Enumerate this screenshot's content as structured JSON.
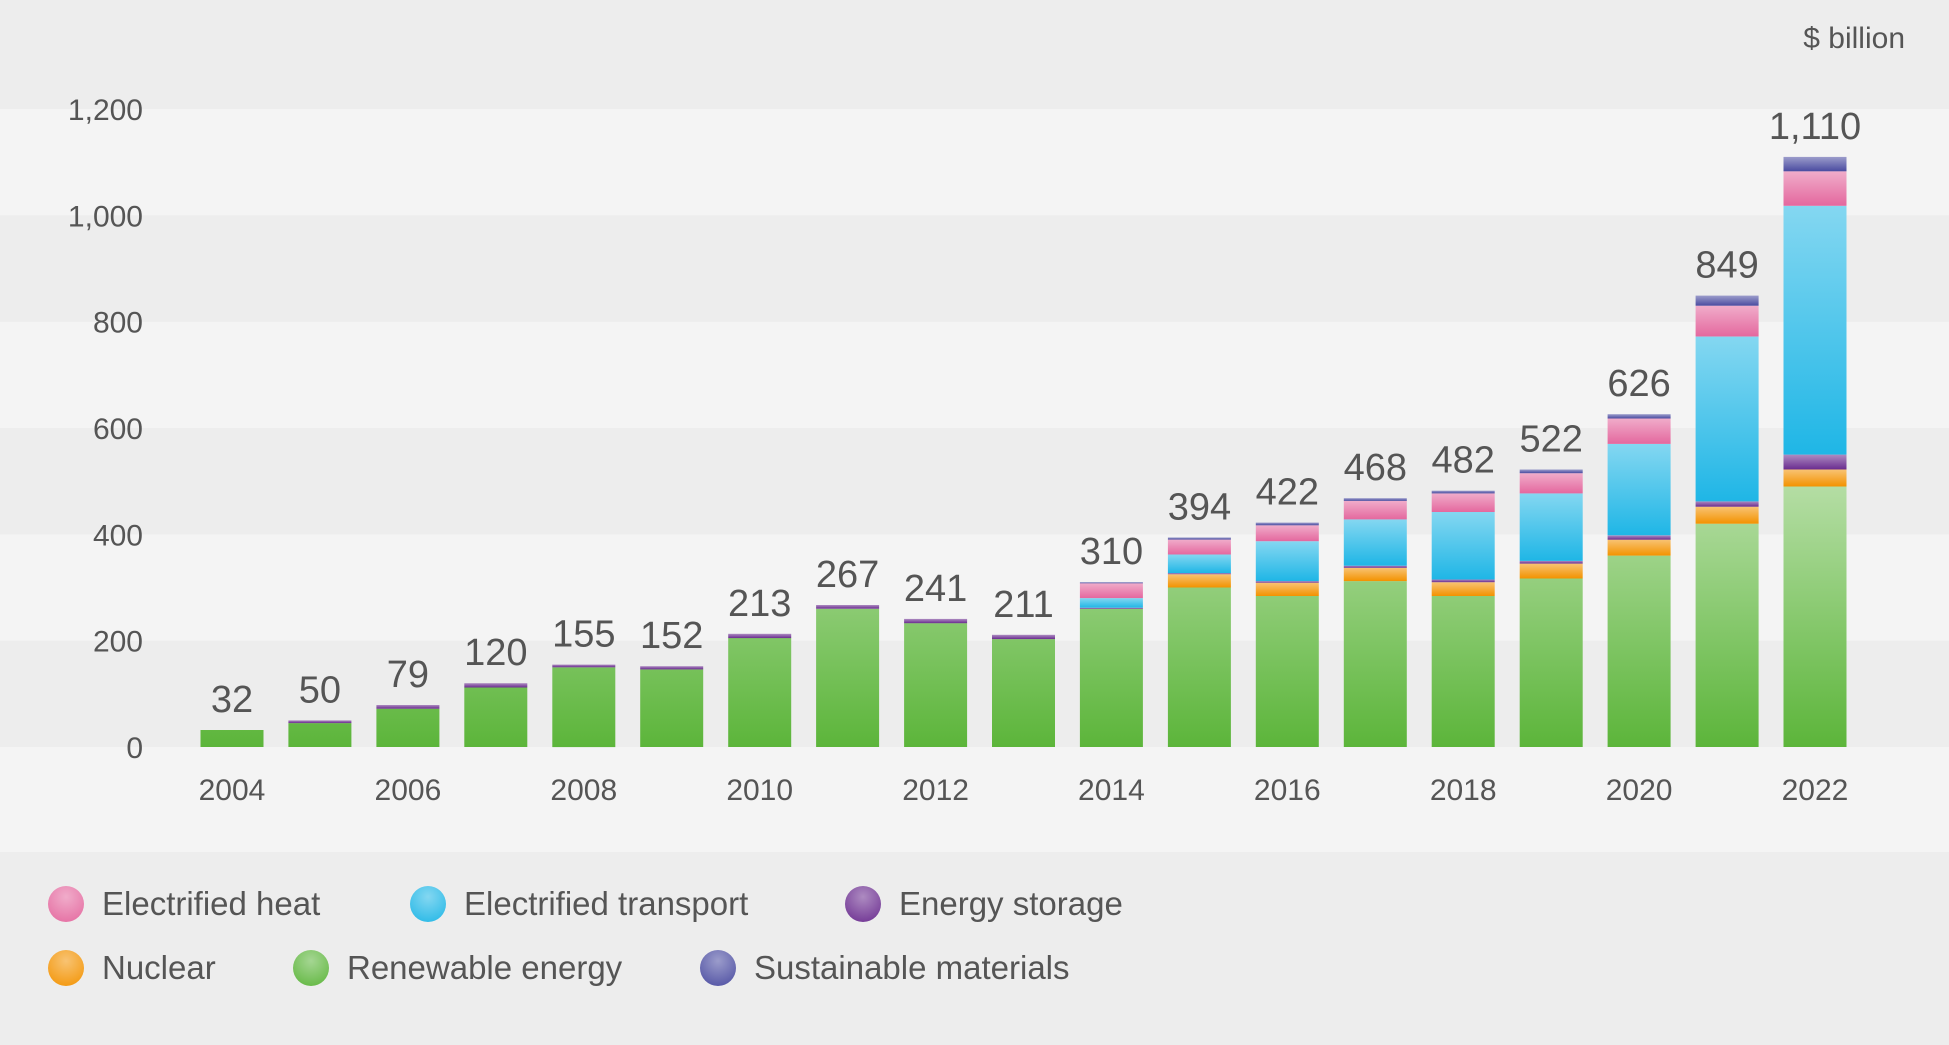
{
  "chart_data": {
    "type": "bar",
    "stacked": true,
    "unit_label": "$ billion",
    "categories": [
      "2004",
      "2005",
      "2006",
      "2007",
      "2008",
      "2009",
      "2010",
      "2011",
      "2012",
      "2013",
      "2014",
      "2015",
      "2016",
      "2017",
      "2018",
      "2019",
      "2020",
      "2021",
      "2022"
    ],
    "x_tick_labels": [
      "2004",
      "2006",
      "2008",
      "2010",
      "2012",
      "2014",
      "2016",
      "2018",
      "2020",
      "2022"
    ],
    "ylim": [
      0,
      1200
    ],
    "y_ticks": [
      0,
      200,
      400,
      600,
      800,
      1000,
      1200
    ],
    "y_tick_labels": [
      "0",
      "200",
      "400",
      "600",
      "800",
      "1,000",
      "1,200"
    ],
    "totals": [
      32,
      50,
      79,
      120,
      155,
      152,
      213,
      267,
      241,
      211,
      310,
      394,
      422,
      468,
      482,
      522,
      626,
      849,
      1110
    ],
    "total_labels": [
      "32",
      "50",
      "79",
      "120",
      "155",
      "152",
      "213",
      "267",
      "241",
      "211",
      "310",
      "394",
      "422",
      "468",
      "482",
      "522",
      "626",
      "849",
      "1,110"
    ],
    "series": [
      {
        "name": "Renewable energy",
        "color": "#5cb53a",
        "values": [
          32,
          45,
          72,
          112,
          150,
          146,
          205,
          260,
          233,
          203,
          260,
          300,
          284,
          312,
          284,
          317,
          360,
          420,
          490
        ]
      },
      {
        "name": "Nuclear",
        "color": "#f39200",
        "values": [
          0,
          0,
          0,
          0,
          0,
          0,
          0,
          0,
          0,
          0,
          0,
          25,
          25,
          25,
          26,
          28,
          30,
          32,
          32
        ]
      },
      {
        "name": "Energy storage",
        "color": "#6a2c8f",
        "values": [
          0,
          5,
          7,
          8,
          5,
          6,
          8,
          7,
          8,
          8,
          2,
          2,
          3,
          4,
          5,
          5,
          8,
          10,
          28
        ]
      },
      {
        "name": "Electrified transport",
        "color": "#1fb6e6",
        "values": [
          0,
          0,
          0,
          0,
          0,
          0,
          0,
          0,
          0,
          0,
          18,
          35,
          75,
          87,
          127,
          127,
          172,
          310,
          468
        ]
      },
      {
        "name": "Electrified heat",
        "color": "#e4689e",
        "values": [
          0,
          0,
          0,
          0,
          0,
          0,
          0,
          0,
          0,
          0,
          28,
          28,
          30,
          35,
          35,
          38,
          48,
          58,
          65
        ]
      },
      {
        "name": "Sustainable materials",
        "color": "#4a4ba0",
        "values": [
          0,
          0,
          0,
          0,
          0,
          0,
          0,
          0,
          0,
          0,
          2,
          4,
          5,
          5,
          5,
          7,
          8,
          19,
          27
        ]
      }
    ],
    "legend": {
      "placement": "bottom",
      "rows": [
        [
          "Electrified heat",
          "Electrified transport",
          "Energy storage"
        ],
        [
          "Nuclear",
          "Renewable energy",
          "Sustainable materials"
        ]
      ]
    },
    "grid": "alternating horizontal bands"
  }
}
